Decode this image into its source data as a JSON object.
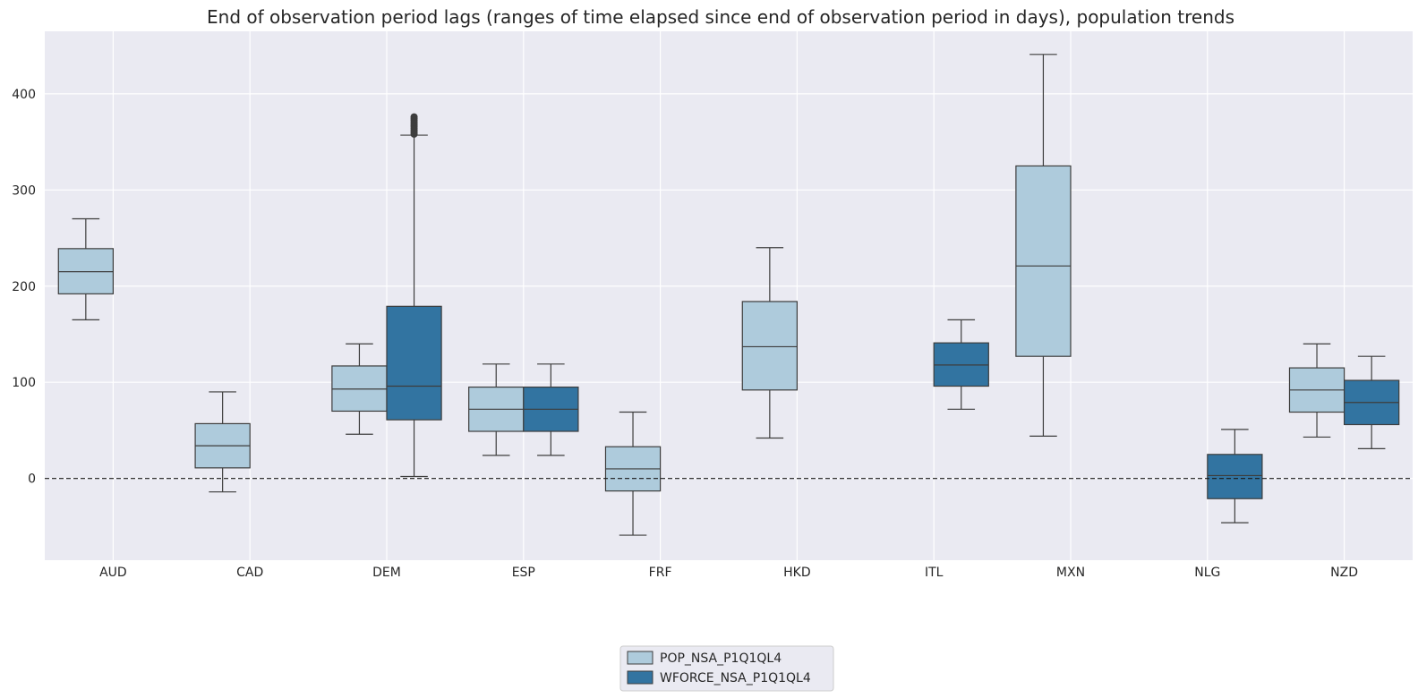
{
  "chart_data": {
    "type": "box",
    "title": "End of observation period lags (ranges of time elapsed since end of observation period in days), population trends",
    "xlabel": "",
    "ylabel": "",
    "categories": [
      "AUD",
      "CAD",
      "DEM",
      "ESP",
      "FRF",
      "HKD",
      "ITL",
      "MXN",
      "NLG",
      "NZD"
    ],
    "ylim": [
      -85,
      465
    ],
    "yticks": [
      0,
      100,
      200,
      300,
      400
    ],
    "grid": true,
    "reference_line": 0,
    "legend": {
      "placement": "bottom-center"
    },
    "series": [
      {
        "name": "POP_NSA_P1Q1QL4",
        "color": "#aecbdc",
        "boxes": [
          {
            "category": "AUD",
            "min": 165,
            "q1": 192,
            "median": 215,
            "q3": 239,
            "max": 270
          },
          {
            "category": "CAD",
            "min": -14,
            "q1": 11,
            "median": 34,
            "q3": 57,
            "max": 90
          },
          {
            "category": "DEM",
            "min": 46,
            "q1": 70,
            "median": 93,
            "q3": 117,
            "max": 140
          },
          {
            "category": "ESP",
            "min": 24,
            "q1": 49,
            "median": 72,
            "q3": 95,
            "max": 119
          },
          {
            "category": "FRF",
            "min": -59,
            "q1": -13,
            "median": 10,
            "q3": 33,
            "max": 69
          },
          {
            "category": "HKD",
            "min": 42,
            "q1": 92,
            "median": 137,
            "q3": 184,
            "max": 240
          },
          {
            "category": "MXN",
            "min": 44,
            "q1": 127,
            "median": 221,
            "q3": 325,
            "max": 441
          },
          {
            "category": "NZD",
            "min": 43,
            "q1": 69,
            "median": 92,
            "q3": 115,
            "max": 140
          }
        ]
      },
      {
        "name": "WFORCE_NSA_P1Q1QL4",
        "color": "#3274a1",
        "boxes": [
          {
            "category": "DEM",
            "min": 2,
            "q1": 61,
            "median": 96,
            "q3": 179,
            "max": 357,
            "outliers": [
              358,
              360,
              362,
              364,
              366,
              368,
              370,
              372,
              374,
              376
            ]
          },
          {
            "category": "ESP",
            "min": 24,
            "q1": 49,
            "median": 72,
            "q3": 95,
            "max": 119
          },
          {
            "category": "ITL",
            "min": 72,
            "q1": 96,
            "median": 118,
            "q3": 141,
            "max": 165
          },
          {
            "category": "NLG",
            "min": -46,
            "q1": -21,
            "median": 3,
            "q3": 25,
            "max": 51
          },
          {
            "category": "NZD",
            "min": 31,
            "q1": 56,
            "median": 79,
            "q3": 102,
            "max": 127
          }
        ]
      }
    ]
  }
}
